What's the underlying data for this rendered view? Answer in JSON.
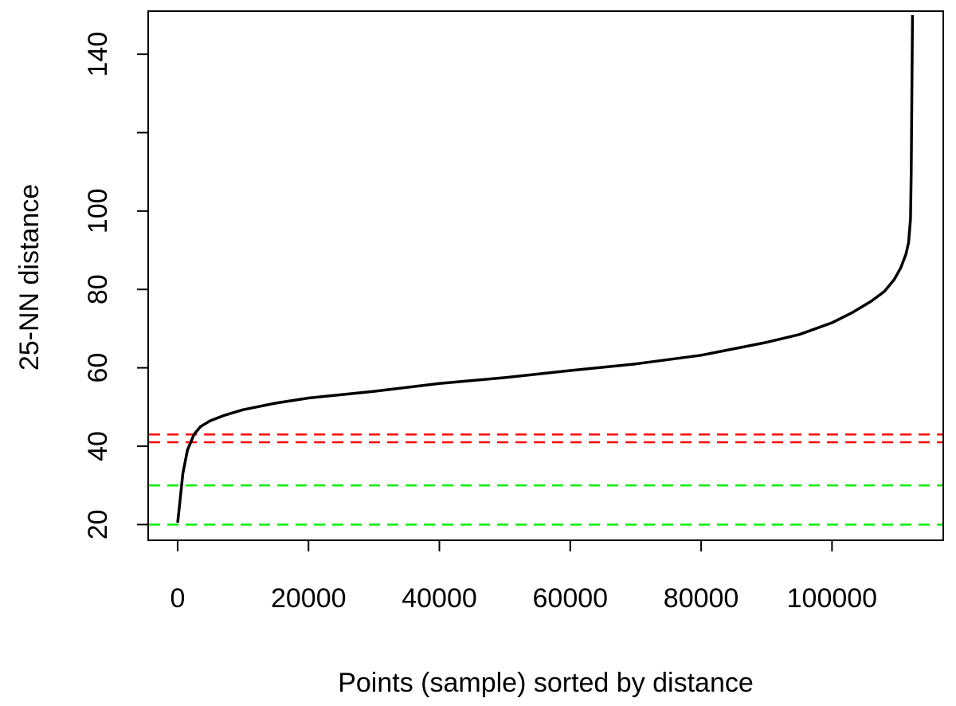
{
  "chart_data": {
    "type": "line",
    "title": "",
    "xlabel": "Points (sample) sorted by distance",
    "ylabel": "25-NN distance",
    "xlim": [
      -4500,
      117000
    ],
    "ylim": [
      16,
      151
    ],
    "x_ticks": [
      0,
      20000,
      40000,
      60000,
      80000,
      100000
    ],
    "x_tick_labels": [
      "0",
      "20000",
      "40000",
      "60000",
      "80000",
      "100000"
    ],
    "y_ticks": [
      20,
      40,
      60,
      80,
      100,
      120,
      140
    ],
    "y_tick_labels": [
      "20",
      "40",
      "60",
      "80",
      "100",
      "",
      "140"
    ],
    "grid": false,
    "series": [
      {
        "color": "#000000",
        "x": [
          0,
          300,
          800,
          1500,
          2500,
          3500,
          5000,
          7000,
          10000,
          15000,
          20000,
          30000,
          40000,
          50000,
          60000,
          70000,
          80000,
          90000,
          95000,
          100000,
          103000,
          106000,
          108000,
          109500,
          110500,
          111300,
          111700,
          112000,
          112100,
          112200,
          112300
        ],
        "y": [
          20.5,
          25,
          33,
          39,
          43,
          45,
          46.5,
          47.8,
          49.3,
          51,
          52.3,
          54,
          56,
          57.5,
          59.3,
          61,
          63.2,
          66.5,
          68.5,
          71.5,
          74,
          77,
          79.5,
          82.5,
          85.5,
          89,
          92,
          98,
          110,
          130,
          150
        ]
      }
    ],
    "reference_lines": [
      {
        "y": 43,
        "color": "#ff0000",
        "style": "dashed"
      },
      {
        "y": 41,
        "color": "#ff0000",
        "style": "dashed"
      },
      {
        "y": 30,
        "color": "#00ee00",
        "style": "dashed"
      },
      {
        "y": 20,
        "color": "#00ee00",
        "style": "dashed"
      }
    ]
  }
}
